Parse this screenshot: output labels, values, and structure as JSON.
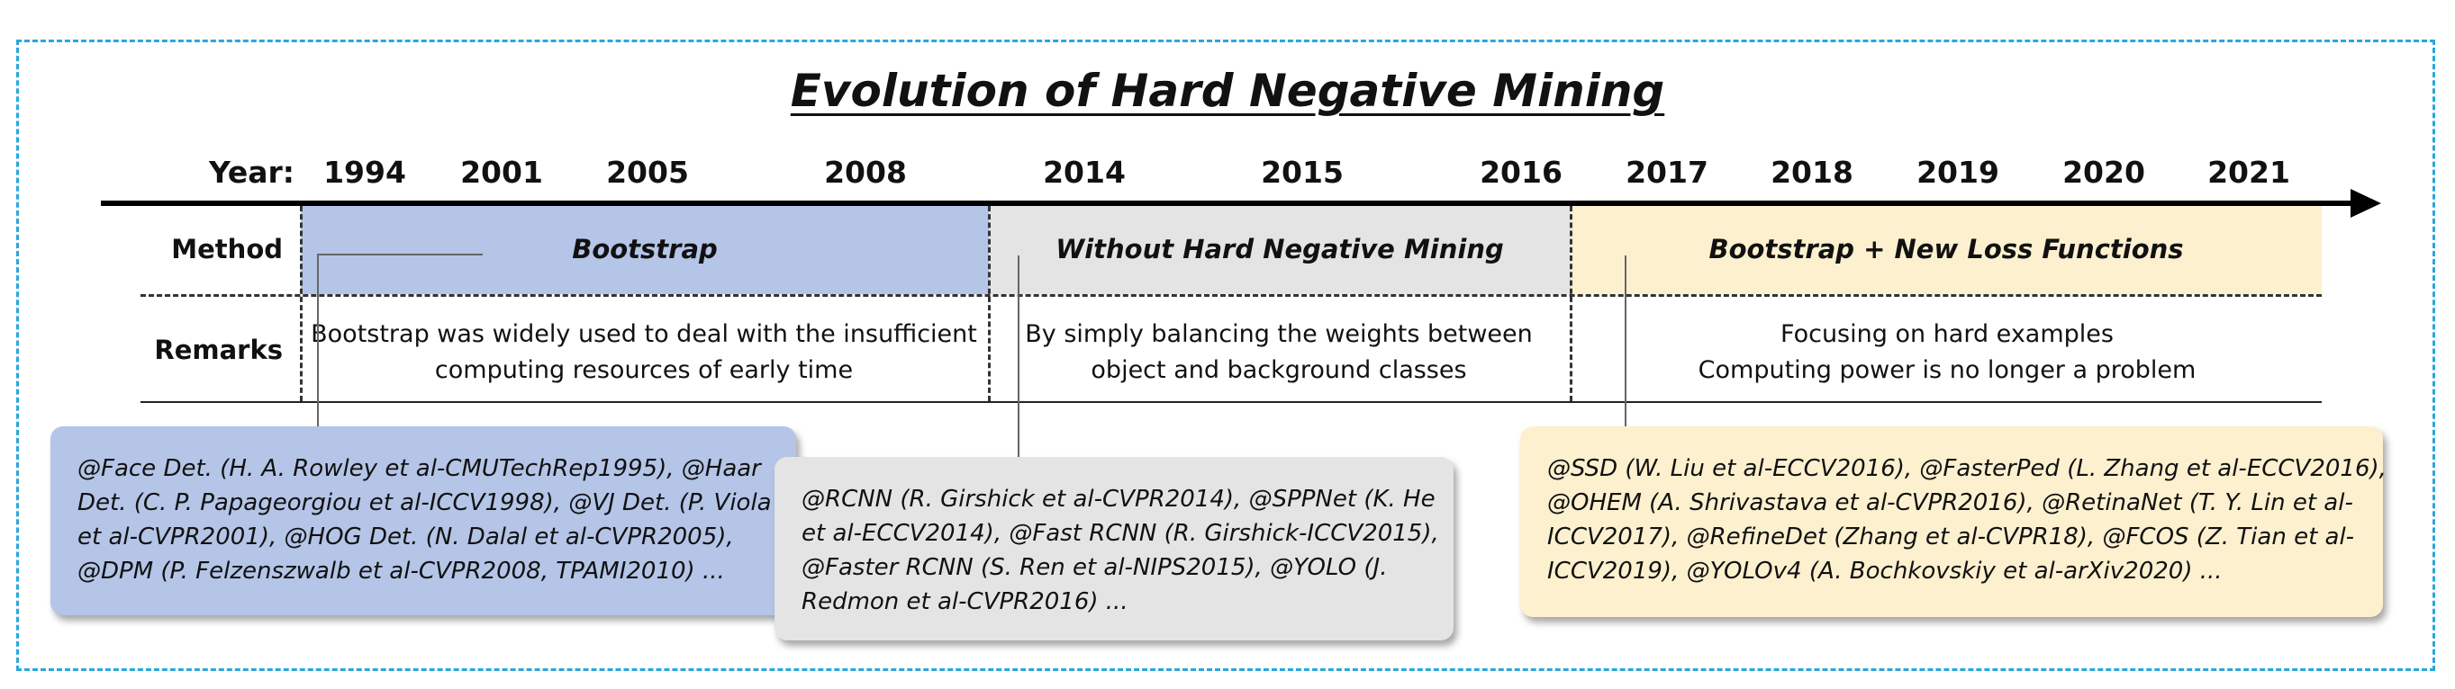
{
  "title": "Evolution of Hard Negative Mining",
  "timeline": {
    "year_label": "Year:",
    "years": [
      "1994",
      "2001",
      "2005",
      "2008",
      "2014",
      "2015",
      "2016",
      "2017",
      "2018",
      "2019",
      "2020",
      "2021"
    ]
  },
  "rows": {
    "method_label": "Method",
    "remarks_label": "Remarks"
  },
  "phases": [
    {
      "method": "Bootstrap",
      "remarks": [
        "Bootstrap was widely used to deal with the insufficient",
        "computing resources of early time"
      ],
      "color": "#b4c5e7",
      "box_lines": [
        "@Face Det. (H. A. Rowley et al-CMUTechRep1995), @Haar",
        "Det. (C. P. Papageorgiou et al-ICCV1998), @VJ Det. (P. Viola",
        "et al-CVPR2001), @HOG Det. (N. Dalal et al-CVPR2005),",
        "@DPM (P. Felzenszwalb et al-CVPR2008, TPAMI2010) ..."
      ]
    },
    {
      "method": "Without Hard Negative Mining",
      "remarks": [
        "By simply balancing the weights between",
        "object and background classes"
      ],
      "color": "#e4e4e4",
      "box_lines": [
        "@RCNN (R. Girshick et al-CVPR2014), @SPPNet (K. He",
        "et al-ECCV2014), @Fast RCNN (R. Girshick-ICCV2015),",
        "@Faster RCNN (S. Ren et al-NIPS2015), @YOLO (J.",
        "Redmon et al-CVPR2016) ..."
      ]
    },
    {
      "method": "Bootstrap + New Loss Functions",
      "remarks": [
        "Focusing on hard examples",
        "Computing power is no longer a problem"
      ],
      "color": "#fdf0cf",
      "box_lines": [
        "@SSD (W. Liu et al-ECCV2016), @FasterPed (L. Zhang et al-ECCV2016),",
        "@OHEM (A. Shrivastava et al-CVPR2016), @RetinaNet (T. Y. Lin et al-",
        "ICCV2017), @RefineDet (Zhang et al-CVPR18),  @FCOS (Z. Tian et al-",
        "ICCV2019), @YOLOv4 (A. Bochkovskiy et al-arXiv2020) ..."
      ]
    }
  ],
  "colors": {
    "frame": "#2aa7dc",
    "axis": "#000000"
  }
}
